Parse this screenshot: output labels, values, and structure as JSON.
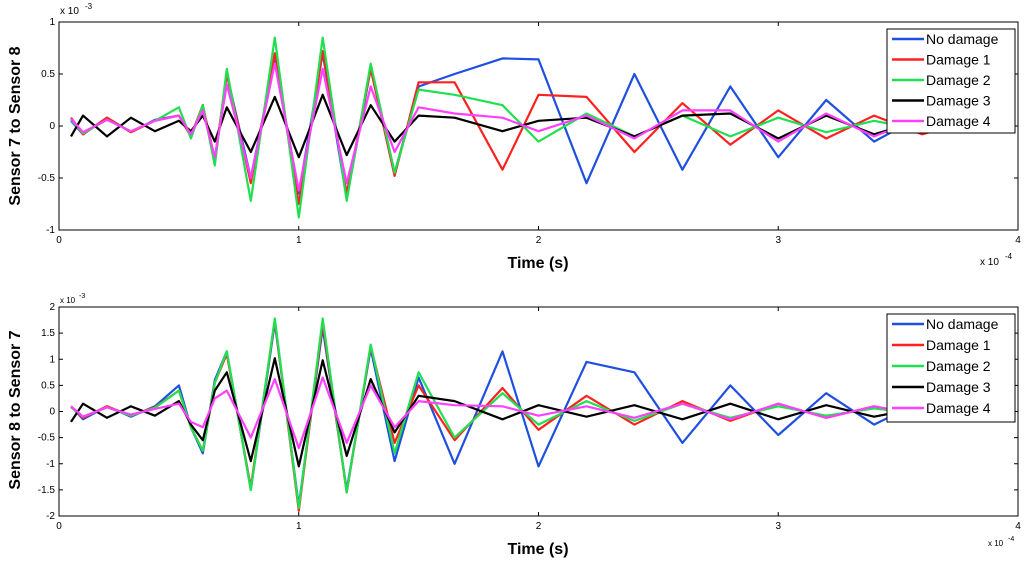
{
  "figure": {
    "colors": {
      "No damage": "#1f4fe0",
      "Damage 1": "#ff2020",
      "Damage 2": "#20e050",
      "Damage 3": "#000000",
      "Damage 4": "#ff40ff"
    }
  },
  "chart_data": [
    {
      "type": "line",
      "title": "",
      "xlabel": "Time (s)",
      "ylabel": "Sensor 7 to Sensor 8",
      "x_exponent": "x 10",
      "x_exponent_power": "-4",
      "y_exponent": "x 10",
      "y_exponent_power": "-3",
      "xlim": [
        0,
        4
      ],
      "ylim": [
        -1,
        1
      ],
      "xticks": [
        "0",
        "1",
        "2",
        "3",
        "4"
      ],
      "yticks": [
        "-1",
        "-0.5",
        "0",
        "0.5",
        "1"
      ],
      "xtick_values": [
        0,
        1,
        2,
        3,
        4
      ],
      "ytick_values": [
        -1,
        -0.5,
        0,
        0.5,
        1
      ],
      "legend_position": "top-right",
      "grid": false,
      "x": [
        0.05,
        0.1,
        0.2,
        0.3,
        0.4,
        0.5,
        0.55,
        0.6,
        0.65,
        0.7,
        0.8,
        0.9,
        1.0,
        1.1,
        1.2,
        1.3,
        1.4,
        1.5,
        1.65,
        1.85,
        2.0,
        2.2,
        2.4,
        2.6,
        2.8,
        3.0,
        3.2,
        3.4,
        3.6,
        3.8
      ],
      "series": [
        {
          "name": "No damage",
          "values": [
            0.05,
            -0.08,
            0.08,
            -0.06,
            0.06,
            0.1,
            -0.1,
            0.2,
            -0.35,
            0.5,
            -0.5,
            0.65,
            -0.65,
            0.7,
            -0.7,
            0.55,
            -0.45,
            0.38,
            0.5,
            0.65,
            0.64,
            -0.55,
            0.5,
            -0.42,
            0.38,
            -0.3,
            0.25,
            -0.15,
            0.1,
            -0.05
          ]
        },
        {
          "name": "Damage 1",
          "values": [
            0.08,
            -0.08,
            0.08,
            -0.06,
            0.05,
            0.1,
            -0.1,
            0.2,
            -0.32,
            0.5,
            -0.55,
            0.7,
            -0.75,
            0.72,
            -0.65,
            0.55,
            -0.48,
            0.42,
            0.42,
            -0.42,
            0.3,
            0.28,
            -0.25,
            0.22,
            -0.18,
            0.15,
            -0.12,
            0.1,
            -0.08,
            0.05
          ]
        },
        {
          "name": "Damage 2",
          "values": [
            0.06,
            -0.07,
            0.06,
            -0.05,
            0.05,
            0.18,
            -0.12,
            0.2,
            -0.38,
            0.55,
            -0.72,
            0.85,
            -0.88,
            0.85,
            -0.72,
            0.6,
            -0.45,
            0.35,
            0.3,
            0.2,
            -0.15,
            0.12,
            -0.1,
            0.1,
            -0.1,
            0.08,
            -0.06,
            0.05,
            -0.04,
            0.03
          ]
        },
        {
          "name": "Damage 3",
          "values": [
            -0.1,
            0.1,
            -0.1,
            0.08,
            -0.05,
            0.05,
            -0.05,
            0.1,
            -0.15,
            0.18,
            -0.25,
            0.28,
            -0.3,
            0.3,
            -0.28,
            0.2,
            -0.15,
            0.1,
            0.08,
            -0.05,
            0.05,
            0.08,
            -0.1,
            0.1,
            0.12,
            -0.12,
            0.1,
            -0.08,
            0.06,
            -0.04
          ]
        },
        {
          "name": "Damage 4",
          "values": [
            0.07,
            -0.06,
            0.06,
            -0.05,
            0.05,
            0.1,
            -0.08,
            0.15,
            -0.3,
            0.4,
            -0.5,
            0.6,
            -0.62,
            0.55,
            -0.55,
            0.38,
            -0.25,
            0.18,
            0.12,
            0.08,
            -0.05,
            0.1,
            -0.12,
            0.15,
            0.15,
            -0.15,
            0.12,
            -0.1,
            0.08,
            -0.06
          ]
        }
      ]
    },
    {
      "type": "line",
      "title": "",
      "xlabel": "Time (s)",
      "ylabel": "Sensor 8 to Sensor 7",
      "x_exponent": "x 10",
      "x_exponent_power": "-4",
      "y_exponent": "x 10",
      "y_exponent_power": "-3",
      "xlim": [
        0,
        4
      ],
      "ylim": [
        -2,
        2
      ],
      "xticks": [
        "0",
        "1",
        "2",
        "3",
        "4"
      ],
      "yticks": [
        "-2",
        "-1.5",
        "-1",
        "-0.5",
        "0",
        "0.5",
        "1",
        "1.5",
        "2"
      ],
      "xtick_values": [
        0,
        1,
        2,
        3,
        4
      ],
      "ytick_values": [
        -2,
        -1.5,
        -1,
        -0.5,
        0,
        0.5,
        1,
        1.5,
        2
      ],
      "legend_position": "top-right",
      "grid": false,
      "x": [
        0.05,
        0.1,
        0.2,
        0.3,
        0.4,
        0.5,
        0.55,
        0.6,
        0.65,
        0.7,
        0.8,
        0.9,
        1.0,
        1.1,
        1.2,
        1.3,
        1.4,
        1.5,
        1.65,
        1.85,
        2.0,
        2.2,
        2.4,
        2.6,
        2.8,
        3.0,
        3.2,
        3.4,
        3.6,
        3.8
      ],
      "series": [
        {
          "name": "No damage",
          "values": [
            0.1,
            -0.15,
            0.1,
            -0.1,
            0.1,
            0.5,
            -0.3,
            -0.8,
            0.6,
            1.15,
            -1.5,
            1.7,
            -1.8,
            1.6,
            -1.5,
            1.2,
            -0.95,
            0.65,
            -1.0,
            1.15,
            -1.05,
            0.95,
            0.75,
            -0.6,
            0.5,
            -0.45,
            0.35,
            -0.25,
            0.2,
            -0.15
          ]
        },
        {
          "name": "Damage 1",
          "values": [
            0.1,
            -0.12,
            0.1,
            -0.08,
            0.08,
            0.4,
            -0.3,
            -0.75,
            0.55,
            1.1,
            -1.45,
            1.75,
            -1.9,
            1.7,
            -1.55,
            1.25,
            -0.6,
            0.5,
            -0.55,
            0.45,
            -0.35,
            0.3,
            -0.25,
            0.2,
            -0.18,
            0.15,
            -0.12,
            0.1,
            -0.08,
            0.05
          ]
        },
        {
          "name": "Damage 2",
          "values": [
            0.08,
            -0.1,
            0.08,
            -0.08,
            0.07,
            0.4,
            -0.3,
            -0.75,
            0.55,
            1.15,
            -1.5,
            1.78,
            -1.85,
            1.78,
            -1.55,
            1.28,
            -0.8,
            0.75,
            -0.5,
            0.35,
            -0.25,
            0.2,
            -0.18,
            0.15,
            -0.12,
            0.1,
            -0.08,
            0.06,
            -0.05,
            0.04
          ]
        },
        {
          "name": "Damage 3",
          "values": [
            -0.2,
            0.15,
            -0.12,
            0.1,
            -0.08,
            0.2,
            -0.25,
            -0.55,
            0.4,
            0.75,
            -0.95,
            1.02,
            -1.05,
            0.98,
            -0.85,
            0.62,
            -0.4,
            0.3,
            0.2,
            -0.15,
            0.12,
            -0.1,
            0.12,
            -0.15,
            0.15,
            -0.15,
            0.12,
            -0.1,
            0.08,
            -0.06
          ]
        },
        {
          "name": "Damage 4",
          "values": [
            0.1,
            -0.1,
            0.08,
            -0.06,
            0.05,
            0.15,
            -0.2,
            -0.3,
            0.25,
            0.4,
            -0.5,
            0.62,
            -0.7,
            0.65,
            -0.6,
            0.5,
            -0.3,
            0.2,
            0.12,
            0.1,
            -0.08,
            0.1,
            -0.12,
            0.15,
            -0.15,
            0.15,
            -0.12,
            0.1,
            -0.08,
            0.06
          ]
        }
      ]
    }
  ]
}
